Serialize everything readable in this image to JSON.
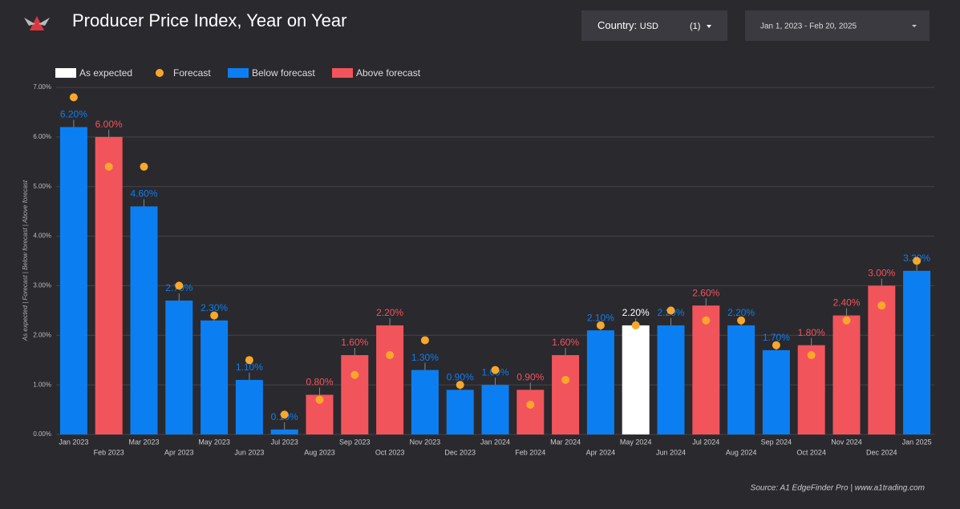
{
  "header": {
    "title": "Producer Price Index, Year on Year",
    "country_label": "Country",
    "country_value": "USD",
    "country_count": "(1)",
    "date_range": "Jan 1, 2023 - Feb 20, 2025"
  },
  "chart_data": {
    "type": "bar",
    "y_label": "As expected | Forecast | Below forecast | Above forecast",
    "source": "Source: A1 EdgeFinder Pro | www.a1trading.com",
    "categories": [
      "Jan 2023",
      "Feb 2023",
      "Mar 2023",
      "Apr 2023",
      "May 2023",
      "Jun 2023",
      "Jul 2023",
      "Aug 2023",
      "Sep 2023",
      "Oct 2023",
      "Nov 2023",
      "Dec 2023",
      "Jan 2024",
      "Feb 2024",
      "Mar 2024",
      "Apr 2024",
      "May 2024",
      "Jun 2024",
      "Jul 2024",
      "Aug 2024",
      "Sep 2024",
      "Oct 2024",
      "Nov 2024",
      "Dec 2024",
      "Jan 2025"
    ],
    "series": [
      {
        "name": "As expected",
        "type": "bar",
        "color": "#ffffff",
        "values": [
          null,
          null,
          null,
          null,
          null,
          null,
          null,
          null,
          null,
          null,
          null,
          null,
          null,
          null,
          null,
          null,
          2.2,
          null,
          null,
          null,
          null,
          null,
          null,
          null,
          null
        ],
        "value_labels": [
          null,
          null,
          null,
          null,
          null,
          null,
          null,
          null,
          null,
          null,
          null,
          null,
          null,
          null,
          null,
          null,
          "2.20%",
          null,
          null,
          null,
          null,
          null,
          null,
          null,
          null
        ]
      },
      {
        "name": "Forecast",
        "type": "dot",
        "color": "#f9a72b",
        "values": [
          6.8,
          5.4,
          5.4,
          3.0,
          2.4,
          1.5,
          0.4,
          0.7,
          1.2,
          1.6,
          1.9,
          1.0,
          1.3,
          0.6,
          1.1,
          2.2,
          2.2,
          2.5,
          2.3,
          2.3,
          1.8,
          1.6,
          2.3,
          2.6,
          3.5
        ]
      },
      {
        "name": "Below forecast",
        "type": "bar",
        "color": "#0b7ff2",
        "values": [
          6.2,
          null,
          4.6,
          2.7,
          2.3,
          1.1,
          0.1,
          null,
          null,
          null,
          1.3,
          0.9,
          1.0,
          null,
          null,
          2.1,
          null,
          2.2,
          null,
          2.2,
          1.7,
          null,
          null,
          null,
          3.3
        ],
        "value_labels": [
          "6.20%",
          null,
          "4.60%",
          "2.70%",
          "2.30%",
          "1.10%",
          "0.10%",
          null,
          null,
          null,
          "1.30%",
          "0.90%",
          "1.00%",
          null,
          null,
          "2.10%",
          null,
          "2.20%",
          null,
          "2.20%",
          "1.70%",
          null,
          null,
          null,
          "3.30%"
        ]
      },
      {
        "name": "Above forecast",
        "type": "bar",
        "color": "#f2545b",
        "values": [
          null,
          6.0,
          null,
          null,
          null,
          null,
          null,
          0.8,
          1.6,
          2.2,
          null,
          null,
          null,
          0.9,
          1.6,
          null,
          null,
          null,
          2.6,
          null,
          null,
          1.8,
          2.4,
          3.0,
          null
        ],
        "value_labels": [
          null,
          "6.00%",
          null,
          null,
          null,
          null,
          null,
          "0.80%",
          "1.60%",
          "2.20%",
          null,
          null,
          null,
          "0.90%",
          "1.60%",
          null,
          null,
          null,
          "2.60%",
          null,
          null,
          "1.80%",
          "2.40%",
          "3.00%",
          null
        ]
      }
    ],
    "ylim": [
      0,
      7
    ],
    "yticks": [
      {
        "value": 0,
        "label": "0.00%"
      },
      {
        "value": 1,
        "label": "1.00%"
      },
      {
        "value": 2,
        "label": "2.00%"
      },
      {
        "value": 3,
        "label": "3.00%"
      },
      {
        "value": 4,
        "label": "4.00%"
      },
      {
        "value": 5,
        "label": "5.00%"
      },
      {
        "value": 6,
        "label": "6.00%"
      },
      {
        "value": 7,
        "label": "7.00%"
      }
    ],
    "grid": true
  }
}
